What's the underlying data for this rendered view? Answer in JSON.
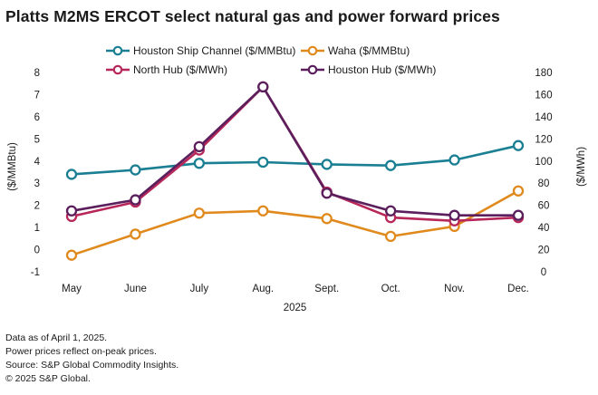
{
  "title": "Platts M2MS ERCOT select natural gas and power forward prices",
  "chart_data": {
    "type": "line",
    "title": "Platts M2MS ERCOT select natural gas and power forward prices",
    "categories": [
      "May",
      "June",
      "July",
      "Aug.",
      "Sept.",
      "Oct.",
      "Nov.",
      "Dec."
    ],
    "year_label": "2025",
    "left_axis": {
      "label": "($/MMBtu)",
      "ylim": [
        -1,
        8
      ],
      "ticks": [
        -1,
        0,
        1,
        2,
        3,
        4,
        5,
        6,
        7,
        8
      ]
    },
    "right_axis": {
      "label": "($/MWh)",
      "ylim": [
        0,
        180
      ],
      "ticks": [
        0,
        20,
        40,
        60,
        80,
        100,
        120,
        140,
        160,
        180
      ]
    },
    "grid": false,
    "legend_position": "top",
    "series": [
      {
        "name": "Houston Ship Channel ($/MMBtu)",
        "axis": "left",
        "color": "#1b7f93",
        "values": [
          3.4,
          3.6,
          3.9,
          3.95,
          3.85,
          3.8,
          4.05,
          4.7
        ]
      },
      {
        "name": "Waha ($/MMBtu)",
        "axis": "left",
        "color": "#e08a1e",
        "values": [
          -0.25,
          0.7,
          1.65,
          1.75,
          1.4,
          0.6,
          1.05,
          2.65
        ]
      },
      {
        "name": "North Hub ($/MWh)",
        "axis": "right",
        "color": "#b8275a",
        "values": [
          50,
          63,
          110,
          167,
          72,
          49,
          46,
          49
        ]
      },
      {
        "name": "Houston Hub ($/MWh)",
        "axis": "right",
        "color": "#5a1f5c",
        "values": [
          55,
          65,
          113,
          167,
          71,
          55,
          51,
          51
        ]
      }
    ]
  },
  "footer": {
    "lines": [
      "Data as of April 1, 2025.",
      "Power prices reflect on-peak prices.",
      "Source: S&P Global Commodity Insights.",
      "© 2025 S&P Global."
    ]
  }
}
